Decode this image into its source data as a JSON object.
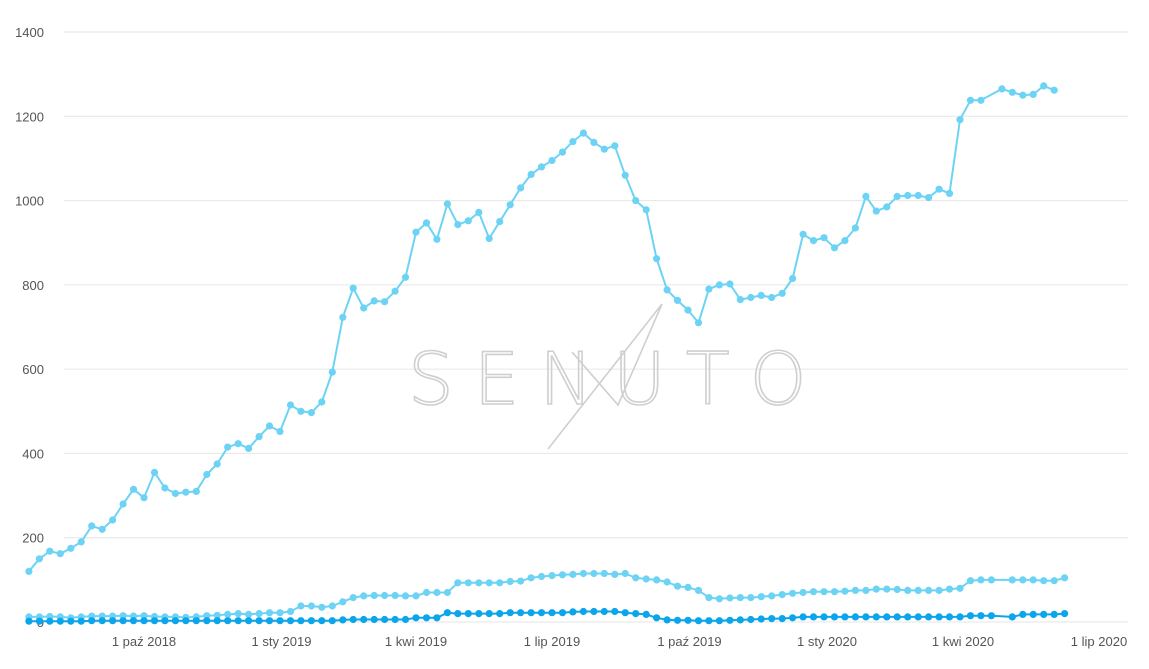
{
  "watermark": {
    "text": "SENUTO"
  },
  "colors": {
    "series_top": "#6dd3f5",
    "series_mid": "#6dd3f5",
    "series_bottom": "#0ca5eb",
    "grid": "#e6e6e6",
    "tick_text": "#555555",
    "watermark": "#cfcfcf"
  },
  "chart_data": {
    "type": "line",
    "title": "",
    "xlabel": "",
    "ylabel": "",
    "ylim": [
      0,
      1400
    ],
    "y_ticks": [
      0,
      200,
      400,
      600,
      800,
      1000,
      1200,
      1400
    ],
    "grid": "horizontal",
    "legend": "none",
    "x_start": "2018-07-16",
    "x_step_days": 7,
    "x_ticks": [
      {
        "label": "1 paź 2018",
        "date": "2018-10-01"
      },
      {
        "label": "1 sty 2019",
        "date": "2019-01-01"
      },
      {
        "label": "1 kwi 2019",
        "date": "2019-04-01"
      },
      {
        "label": "1 lip 2019",
        "date": "2019-07-01"
      },
      {
        "label": "1 paź 2019",
        "date": "2019-10-01"
      },
      {
        "label": "1 sty 2020",
        "date": "2020-01-01"
      },
      {
        "label": "1 kwi 2020",
        "date": "2020-04-01"
      },
      {
        "label": "1 lip 2020",
        "date": "2020-07-01"
      }
    ],
    "series": [
      {
        "color": "#6dd3f5",
        "values": [
          120,
          150,
          168,
          162,
          175,
          190,
          228,
          220,
          242,
          280,
          315,
          295,
          355,
          318,
          305,
          308,
          310,
          350,
          375,
          415,
          423,
          412,
          440,
          465,
          452,
          515,
          500,
          497,
          522,
          593,
          723,
          792,
          745,
          762,
          760,
          785,
          818,
          925,
          947,
          908,
          992,
          943,
          952,
          972,
          910,
          950,
          990,
          1030,
          1062,
          1080,
          1095,
          1115,
          1140,
          1160,
          1138,
          1122,
          1130,
          1060,
          1000,
          978,
          862,
          788,
          763,
          740,
          710,
          790,
          800,
          802,
          765,
          770,
          775,
          770,
          780,
          815,
          920,
          905,
          912,
          888,
          905,
          935,
          1010,
          975,
          985,
          1010,
          1012,
          1012,
          1007,
          1027,
          1017,
          1192,
          1238,
          1238,
          null,
          1265,
          1257,
          1250,
          1252,
          1272,
          1262
        ]
      },
      {
        "color": "#6dd3f5",
        "values": [
          12,
          12,
          13,
          12,
          10,
          12,
          14,
          14,
          14,
          15,
          14,
          15,
          13,
          12,
          12,
          11,
          12,
          15,
          16,
          18,
          20,
          18,
          20,
          22,
          22,
          25,
          38,
          38,
          35,
          38,
          48,
          58,
          62,
          63,
          63,
          63,
          62,
          62,
          70,
          70,
          70,
          93,
          93,
          93,
          93,
          93,
          96,
          97,
          105,
          108,
          110,
          112,
          113,
          115,
          115,
          115,
          113,
          115,
          105,
          102,
          100,
          95,
          85,
          82,
          75,
          58,
          55,
          57,
          58,
          58,
          60,
          62,
          65,
          68,
          70,
          72,
          72,
          72,
          73,
          75,
          75,
          78,
          78,
          77,
          75,
          75,
          75,
          75,
          78,
          80,
          98,
          100,
          100,
          null,
          100,
          100,
          100,
          98,
          98,
          105
        ]
      },
      {
        "color": "#0ca5eb",
        "values": [
          2,
          2,
          2,
          2,
          2,
          2,
          3,
          3,
          3,
          3,
          3,
          3,
          3,
          3,
          3,
          3,
          3,
          3,
          3,
          3,
          3,
          3,
          3,
          3,
          3,
          3,
          3,
          3,
          3,
          3,
          5,
          6,
          6,
          6,
          6,
          6,
          6,
          10,
          10,
          10,
          22,
          20,
          20,
          20,
          20,
          20,
          22,
          22,
          22,
          22,
          22,
          22,
          24,
          25,
          25,
          25,
          25,
          22,
          20,
          18,
          10,
          5,
          4,
          4,
          3,
          3,
          3,
          4,
          5,
          6,
          7,
          8,
          8,
          10,
          12,
          12,
          12,
          12,
          12,
          12,
          12,
          12,
          12,
          12,
          12,
          12,
          12,
          12,
          12,
          12,
          15,
          15,
          15,
          null,
          12,
          18,
          18,
          18,
          18,
          20
        ]
      }
    ]
  }
}
